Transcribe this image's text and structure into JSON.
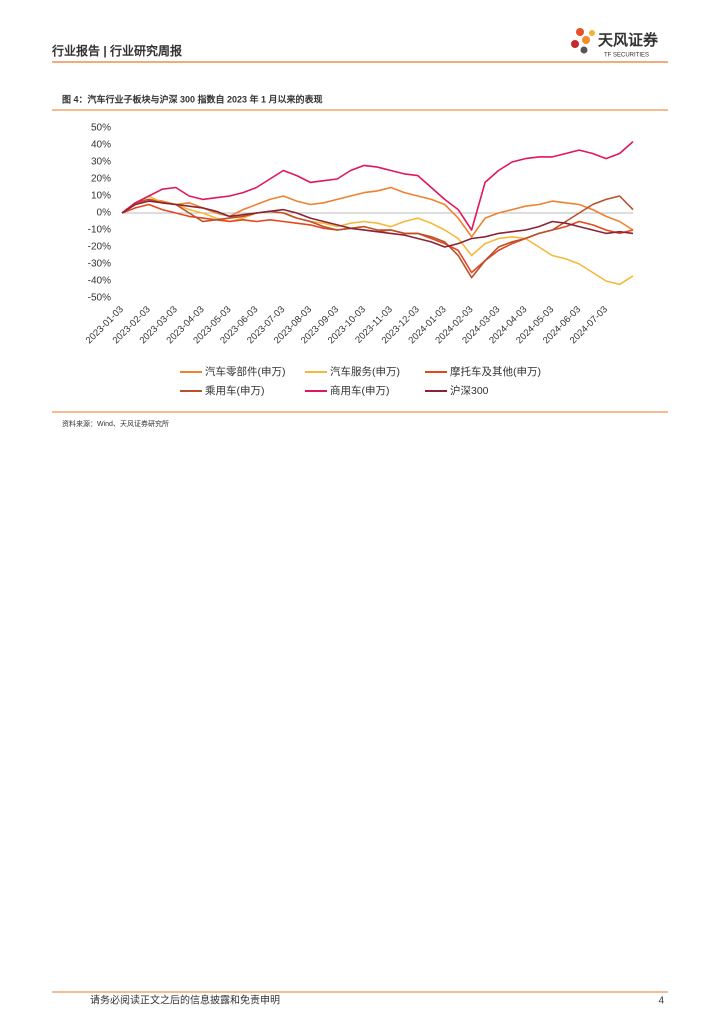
{
  "header": {
    "title": "行业报告 | 行业研究周报",
    "logo": "天风证券",
    "logo_sub": "TF SECURITIES"
  },
  "figure": {
    "caption": "图 4：汽车行业子板块与沪深 300 指数自 2023 年 1 月以来的表现",
    "source": "资料来源：Wind、天风证券研究所"
  },
  "footer": {
    "text": "请务必阅读正文之后的信息披露和免责申明",
    "page": "4"
  },
  "chart_data": {
    "type": "line",
    "categories": [
      "2023-01-03",
      null,
      "2023-02-03",
      null,
      "2023-03-03",
      null,
      "2023-04-03",
      null,
      "2023-05-03",
      null,
      "2023-06-03",
      null,
      "2023-07-03",
      null,
      "2023-08-03",
      null,
      "2023-09-03",
      null,
      "2023-10-03",
      null,
      "2023-11-03",
      null,
      "2023-12-03",
      null,
      "2024-01-03",
      null,
      "2024-02-03",
      null,
      "2024-03-03",
      null,
      "2024-04-03",
      null,
      "2024-05-03",
      null,
      "2024-06-03",
      null,
      "2024-07-03",
      null,
      null
    ],
    "series": [
      {
        "name": "汽车零部件(申万)",
        "color": "#f0812f",
        "values": [
          0,
          6,
          8,
          7,
          5,
          6,
          3,
          0,
          -2,
          2,
          5,
          8,
          10,
          7,
          5,
          6,
          8,
          10,
          12,
          13,
          15,
          12,
          10,
          8,
          5,
          -3,
          -14,
          -3,
          0,
          2,
          4,
          5,
          7,
          6,
          5,
          2,
          -2,
          -5,
          -10
        ]
      },
      {
        "name": "汽车服务(申万)",
        "color": "#f6b83a",
        "values": [
          0,
          5,
          10,
          6,
          5,
          2,
          0,
          -3,
          -5,
          -3,
          0,
          1,
          0,
          -3,
          -5,
          -6,
          -8,
          -6,
          -5,
          -6,
          -8,
          -5,
          -3,
          -6,
          -10,
          -15,
          -25,
          -18,
          -15,
          -14,
          -15,
          -20,
          -25,
          -27,
          -30,
          -35,
          -40,
          -42,
          -37
        ]
      },
      {
        "name": "摩托车及其他(申万)",
        "color": "#e5471e",
        "values": [
          0,
          3,
          5,
          2,
          0,
          -2,
          -3,
          -4,
          -5,
          -4,
          -5,
          -4,
          -5,
          -6,
          -7,
          -9,
          -10,
          -9,
          -10,
          -11,
          -10,
          -12,
          -12,
          -15,
          -18,
          -22,
          -35,
          -28,
          -22,
          -18,
          -15,
          -12,
          -10,
          -8,
          -5,
          -7,
          -10,
          -12,
          -10
        ]
      },
      {
        "name": "乘用车(申万)",
        "color": "#b9512b",
        "values": [
          0,
          6,
          8,
          6,
          5,
          0,
          -5,
          -4,
          -3,
          -2,
          0,
          1,
          0,
          -3,
          -5,
          -8,
          -10,
          -9,
          -8,
          -10,
          -10,
          -12,
          -12,
          -14,
          -17,
          -25,
          -38,
          -28,
          -20,
          -17,
          -15,
          -12,
          -10,
          -5,
          0,
          5,
          8,
          10,
          2
        ]
      },
      {
        "name": "商用车(申万)",
        "color": "#e0175c",
        "values": [
          0,
          6,
          10,
          14,
          15,
          10,
          8,
          9,
          10,
          12,
          15,
          20,
          25,
          22,
          18,
          19,
          20,
          25,
          28,
          27,
          25,
          23,
          22,
          15,
          8,
          2,
          -10,
          18,
          25,
          30,
          32,
          33,
          33,
          35,
          37,
          35,
          32,
          35,
          42
        ]
      },
      {
        "name": "沪深300",
        "color": "#8a2435",
        "values": [
          0,
          5,
          7,
          6,
          5,
          4,
          3,
          1,
          -2,
          -1,
          0,
          1,
          2,
          0,
          -3,
          -5,
          -7,
          -9,
          -10,
          -11,
          -12,
          -13,
          -15,
          -17,
          -20,
          -18,
          -15,
          -14,
          -12,
          -11,
          -10,
          -8,
          -5,
          -6,
          -8,
          -10,
          -12,
          -11,
          -12
        ]
      }
    ],
    "ylim": [
      -50,
      50
    ],
    "yticks": [
      {
        "value": -50,
        "label": "-50%"
      },
      {
        "value": -40,
        "label": "-40%"
      },
      {
        "value": -30,
        "label": "-30%"
      },
      {
        "value": -20,
        "label": "-20%"
      },
      {
        "value": -10,
        "label": "-10%"
      },
      {
        "value": 0,
        "label": "0%"
      },
      {
        "value": 10,
        "label": "10%"
      },
      {
        "value": 20,
        "label": "20%"
      },
      {
        "value": 30,
        "label": "30%"
      },
      {
        "value": 40,
        "label": "40%"
      },
      {
        "value": 50,
        "label": "50%"
      }
    ],
    "grid": false
  }
}
